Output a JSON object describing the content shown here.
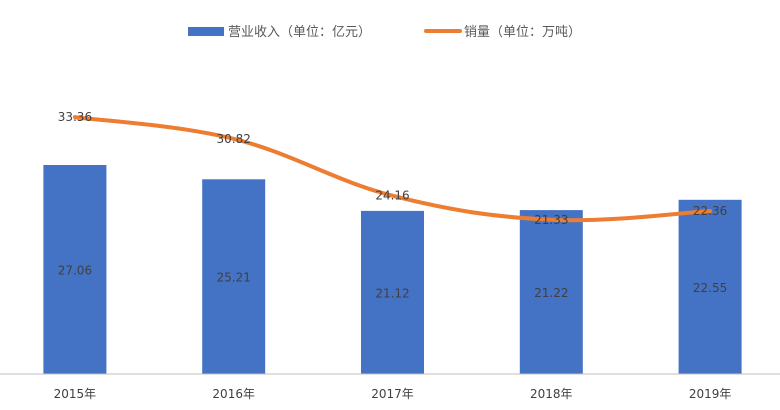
{
  "chart_data": {
    "type": "bar",
    "categories": [
      "2015年",
      "2016年",
      "2017年",
      "2018年",
      "2019年"
    ],
    "series": [
      {
        "name": "营业收入（单位：亿元）",
        "type": "bar",
        "color": "#4472C4",
        "values": [
          27.06,
          25.21,
          21.12,
          21.22,
          22.55
        ],
        "labels": [
          "27.06",
          "25.21",
          "21.12",
          "21.22",
          "22.55"
        ]
      },
      {
        "name": "销量（单位：万吨）",
        "type": "line",
        "color": "#ED7D31",
        "values": [
          33.36,
          30.82,
          24.16,
          21.33,
          22.36
        ],
        "labels": [
          "33.36",
          "30.82",
          "24.16",
          "21.33",
          "22.36"
        ]
      }
    ],
    "legend_position": "top",
    "grid": false,
    "axis_color": "#BFBFBF"
  }
}
